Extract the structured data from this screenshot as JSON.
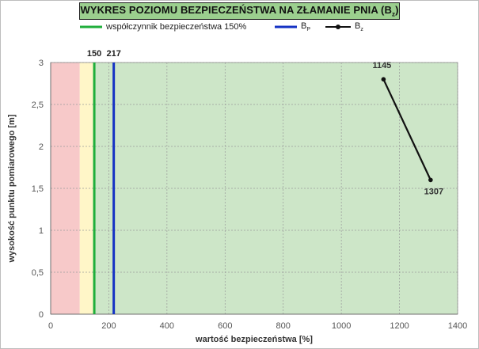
{
  "header": {
    "title_main": "WYKRES POZIOMU BEZPIECZEŃSTWA NA ZŁAMANIE PNIA (B",
    "title_sub": "z",
    "title_end": ")"
  },
  "legend": {
    "green_label": "współczynnik bezpieczeństwa 150%",
    "blue_label": "B",
    "blue_sub": "P",
    "black_label": "B",
    "black_sub": "z"
  },
  "colors": {
    "safety_line": "#1fae3b",
    "bp_line": "#1432c4",
    "bz_line": "#111111",
    "zone_red": "#f7c9c9",
    "zone_yellow": "#fff6c8",
    "zone_green": "#cde6c8",
    "grid": "#9a9a9a"
  },
  "chart_data": {
    "type": "line",
    "xlabel": "wartość bezpieczeństwa [%]",
    "ylabel": "wysokość punktu pomiarowego [m]",
    "xlim": [
      0,
      1400
    ],
    "ylim": [
      0,
      3
    ],
    "xticks": [
      0,
      200,
      400,
      600,
      800,
      1000,
      1200,
      1400
    ],
    "yticks": [
      0,
      0.5,
      1,
      1.5,
      2,
      2.5,
      3
    ],
    "ytick_labels": [
      "0",
      "0,5",
      "1",
      "1,5",
      "2",
      "2,5",
      "3"
    ],
    "grid": true,
    "zones": [
      {
        "from": 0,
        "to": 100,
        "color": "#f7c9c9"
      },
      {
        "from": 100,
        "to": 150,
        "color": "#fff6c8"
      },
      {
        "from": 150,
        "to": 1400,
        "color": "#cde6c8"
      }
    ],
    "vertical_lines": [
      {
        "x": 150,
        "label": "150",
        "color": "#1fae3b"
      },
      {
        "x": 217,
        "label": "217",
        "color": "#1432c4"
      }
    ],
    "series": [
      {
        "name": "B",
        "points": [
          {
            "x": 1145,
            "y": 2.8,
            "label": "1145"
          },
          {
            "x": 1307,
            "y": 1.6,
            "label": "1307"
          }
        ]
      }
    ]
  }
}
